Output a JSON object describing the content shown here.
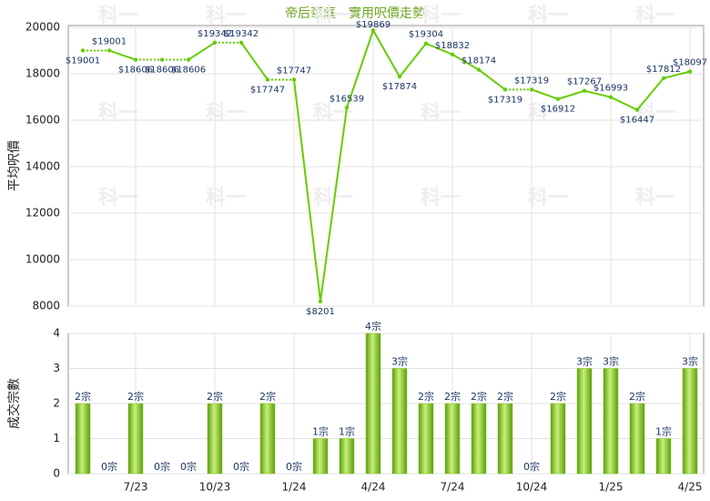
{
  "chart_data": [
    {
      "type": "line",
      "title": "帝后華庭 - 實用呎價走勢",
      "y_label": "平均呎價",
      "values": [
        19001,
        19001,
        18606,
        18606,
        18606,
        19342,
        19342,
        17747,
        17747,
        8201,
        16539,
        19869,
        17874,
        19304,
        18832,
        18174,
        17319,
        17319,
        16912,
        17267,
        16993,
        16447,
        17812,
        18097
      ],
      "value_labels": [
        "$19001",
        "$19001",
        "$18606",
        "$18606",
        "$18606",
        "$19342",
        "$19342",
        "$17747",
        "$17747",
        "$8201",
        "$16539",
        "$19869",
        "$17874",
        "$19304",
        "$18832",
        "$18174",
        "$17319",
        "$17319",
        "$16912",
        "$17267",
        "$16993",
        "$16447",
        "$17812",
        "$18097"
      ],
      "ylim": [
        8000,
        20000
      ],
      "yticks": [
        8000,
        10000,
        12000,
        14000,
        16000,
        18000,
        20000
      ],
      "color": "#66cc00",
      "grid": true,
      "watermark": "科一"
    },
    {
      "type": "bar",
      "y_label": "成交宗數",
      "categories": [
        null,
        null,
        "7/23",
        null,
        null,
        "10/23",
        null,
        null,
        "1/24",
        null,
        null,
        "4/24",
        null,
        null,
        "7/24",
        null,
        null,
        "10/24",
        null,
        null,
        "1/25",
        null,
        null,
        "4/25"
      ],
      "values": [
        2,
        0,
        2,
        0,
        0,
        2,
        0,
        2,
        0,
        1,
        1,
        4,
        3,
        2,
        2,
        2,
        2,
        0,
        2,
        3,
        3,
        2,
        1,
        3
      ],
      "value_labels": [
        "2宗",
        "0宗",
        "2宗",
        "0宗",
        "0宗",
        "2宗",
        "0宗",
        "2宗",
        "0宗",
        "1宗",
        "1宗",
        "4宗",
        "3宗",
        "2宗",
        "2宗",
        "2宗",
        "2宗",
        "0宗",
        "2宗",
        "3宗",
        "3宗",
        "2宗",
        "1宗",
        "3宗"
      ],
      "ylim": [
        0,
        4
      ],
      "yticks": [
        0,
        1,
        2,
        3,
        4
      ],
      "color": "#7cc21c",
      "grid": true
    }
  ]
}
